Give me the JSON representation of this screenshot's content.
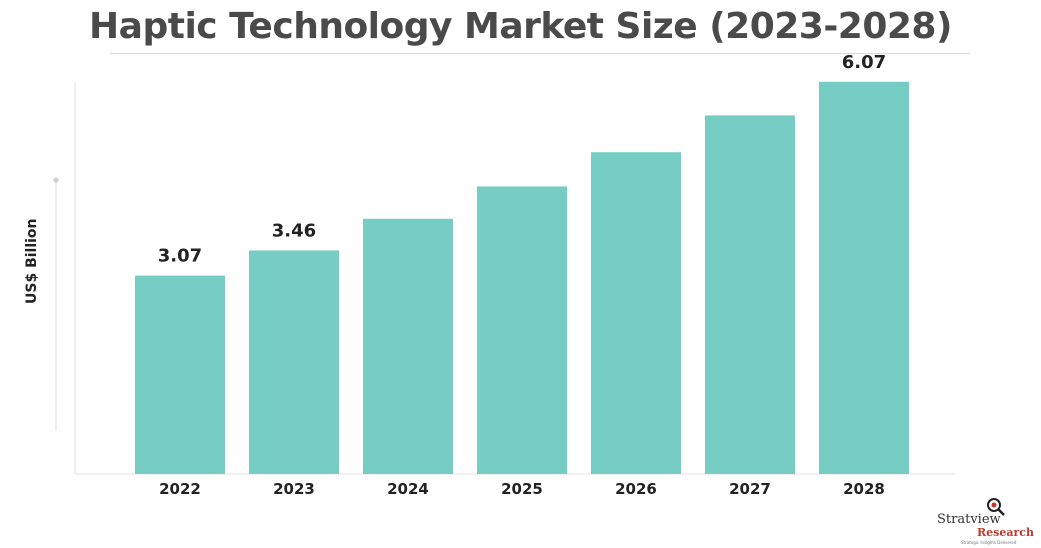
{
  "chart_data": {
    "type": "bar",
    "title": "Haptic Technology Market Size (2023-2028)",
    "ylabel": "US$ Billion",
    "xlabel": "",
    "categories": [
      "2022",
      "2023",
      "2024",
      "2025",
      "2026",
      "2027",
      "2028"
    ],
    "values": [
      3.07,
      3.46,
      3.95,
      4.45,
      4.98,
      5.55,
      6.07
    ],
    "data_labels": [
      "3.07",
      "3.46",
      "",
      "",
      "",
      "",
      "6.07"
    ],
    "ylim": [
      0,
      6.5
    ],
    "grid": false,
    "legend": "none",
    "bar_color": "#76cdc4"
  },
  "logo": {
    "brand": "Stratview",
    "sub": "Research",
    "tagline": "Strategic Insights Delivered"
  }
}
